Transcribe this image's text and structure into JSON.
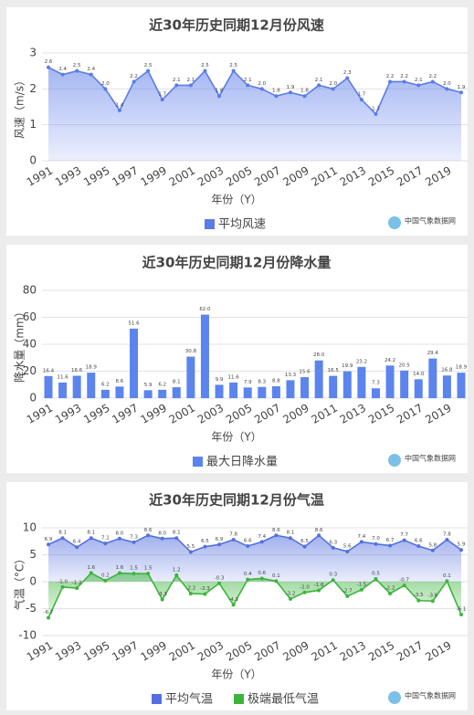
{
  "chart_data": [
    {
      "type": "area",
      "title": "近30年历史同期12月份风速",
      "y_label": "风速（m/s）",
      "x_label": "年份（Y）",
      "source": "中国气象数据网",
      "categories": [
        "1991",
        null,
        "1993",
        null,
        "1995",
        null,
        "1997",
        null,
        "1999",
        null,
        "2001",
        null,
        "2003",
        null,
        "2005",
        null,
        "2007",
        null,
        "2009",
        null,
        "2011",
        null,
        "2013",
        null,
        "2015",
        null,
        "2017",
        null,
        "2019",
        null
      ],
      "series": [
        {
          "name": "平均风速",
          "color": "#5b7be9",
          "values": [
            2.6,
            2.4,
            2.5,
            2.4,
            2.0,
            1.4,
            2.2,
            2.5,
            1.7,
            2.1,
            2.1,
            2.5,
            1.8,
            2.5,
            2.1,
            2.0,
            1.8,
            1.9,
            1.8,
            2.1,
            2.0,
            2.3,
            1.7,
            1.3,
            2.2,
            2.2,
            2.1,
            2.2,
            2.0,
            1.9
          ],
          "value_labels": [
            "2.6",
            "2.4",
            "2.5",
            "2.4",
            "2.0",
            "1.4",
            "2.2",
            "2.5",
            "1.7",
            "2.1",
            "2.1",
            "2.5",
            "1.8",
            "2.5",
            "2.1",
            "2.0",
            "1.8",
            "1.9",
            "1.8",
            "2.1",
            "2.0",
            "2.3",
            "1.7",
            "1.3",
            "2.2",
            "2.2",
            "2.1",
            "2.2",
            "2.0",
            "1.9"
          ]
        }
      ],
      "ylim": [
        0,
        3
      ],
      "yticks": [
        0,
        1,
        2,
        3
      ],
      "grid": true
    },
    {
      "type": "bar",
      "title": "近30年历史同期12月份降水量",
      "y_label": "降水量（mm）",
      "x_label": "年份（Y）",
      "source": "中国气象数据网",
      "categories": [
        "1991",
        null,
        "1993",
        null,
        "1995",
        null,
        "1997",
        null,
        "1999",
        null,
        "2001",
        null,
        "2003",
        null,
        "2005",
        null,
        "2007",
        null,
        "2009",
        null,
        "2011",
        null,
        "2013",
        null,
        "2015",
        null,
        "2017",
        null,
        "2019",
        null
      ],
      "series": [
        {
          "name": "最大日降水量",
          "color": "#5b84ee",
          "values": [
            16.4,
            11.6,
            16.6,
            18.9,
            6.2,
            8.6,
            51.6,
            5.9,
            6.2,
            8.1,
            30.8,
            62.0,
            9.9,
            11.6,
            7.9,
            8.3,
            8.8,
            13.3,
            15.6,
            28.0,
            16.5,
            19.9,
            23.2,
            7.3,
            24.2,
            20.5,
            14.0,
            29.4,
            16.8,
            18.9
          ],
          "value_labels": [
            "16.4",
            "11.6",
            "16.6",
            "18.9",
            "6.2",
            "8.6",
            "51.6",
            "5.9",
            "6.2",
            "8.1",
            "30.8",
            "62.0",
            "9.9",
            "11.6",
            "7.9",
            "8.3",
            "8.8",
            "13.3",
            "15.6",
            "28.0",
            "16.5",
            "19.9",
            "23.2",
            "7.3",
            "24.2",
            "20.5",
            "14.0",
            "29.4",
            "16.8",
            "18.9"
          ]
        }
      ],
      "ylim": [
        0,
        80
      ],
      "yticks": [
        0,
        20,
        40,
        60,
        80
      ],
      "grid": true
    },
    {
      "type": "area",
      "title": "近30年历史同期12月份气温",
      "y_label": "气温（°C）",
      "x_label": "年份（Y）",
      "source": "中国气象数据网",
      "categories": [
        "1991",
        null,
        "1993",
        null,
        "1995",
        null,
        "1997",
        null,
        "1999",
        null,
        "2001",
        null,
        "2003",
        null,
        "2005",
        null,
        "2007",
        null,
        "2009",
        null,
        "2011",
        null,
        "2013",
        null,
        "2015",
        null,
        "2017",
        null,
        "2019",
        null
      ],
      "series": [
        {
          "name": "平均气温",
          "color": "#5470e0",
          "values": [
            6.9,
            8.1,
            6.4,
            8.1,
            7.1,
            8.0,
            7.3,
            8.6,
            8.0,
            8.1,
            5.5,
            6.5,
            6.9,
            7.8,
            6.6,
            7.4,
            8.6,
            8.1,
            6.5,
            8.6,
            6.3,
            5.6,
            7.4,
            7.0,
            6.7,
            7.7,
            6.6,
            5.8,
            7.8,
            5.9
          ],
          "value_labels": [
            "6.9",
            "8.1",
            "6.4",
            "8.1",
            "7.1",
            "8.0",
            "7.3",
            "8.6",
            "8.0",
            "8.1",
            "5.5",
            "6.5",
            "6.9",
            "7.8",
            "6.6",
            "7.4",
            "8.6",
            "8.1",
            "6.5",
            "8.6",
            "6.3",
            "5.6",
            "7.4",
            "7.0",
            "6.7",
            "7.7",
            "6.6",
            "5.8",
            "7.8",
            "5.9"
          ]
        },
        {
          "name": "极端最低气温",
          "color": "#3cb43c",
          "values": [
            -6.7,
            -1.0,
            -1.2,
            1.6,
            0.2,
            1.6,
            1.5,
            1.5,
            -3.3,
            1.2,
            -2.2,
            -2.3,
            -0.3,
            -4.3,
            0.4,
            0.6,
            0.1,
            -3.2,
            -2.0,
            -1.6,
            0.3,
            -2.7,
            -1.5,
            0.5,
            -2.2,
            -0.7,
            -3.5,
            -3.6,
            0.1,
            -6.1
          ],
          "value_labels": [
            "-6.7",
            "-1.0",
            "-1.2",
            "1.6",
            "0.2",
            "1.6",
            "1.5",
            "1.5",
            "-3.3",
            "1.2",
            "-2.2",
            "-2.3",
            "-0.3",
            "-4.3",
            "0.4",
            "0.6",
            "0.1",
            "-3.2",
            "-2.0",
            "-1.6",
            "0.3",
            "-2.7",
            "-1.5",
            "0.5",
            "-2.2",
            "-0.7",
            "-3.5",
            "-3.6",
            "0.1",
            "-6.1"
          ]
        }
      ],
      "ylim": [
        -10,
        10
      ],
      "yticks": [
        -10,
        -5,
        0,
        5,
        10
      ],
      "grid": true
    }
  ]
}
